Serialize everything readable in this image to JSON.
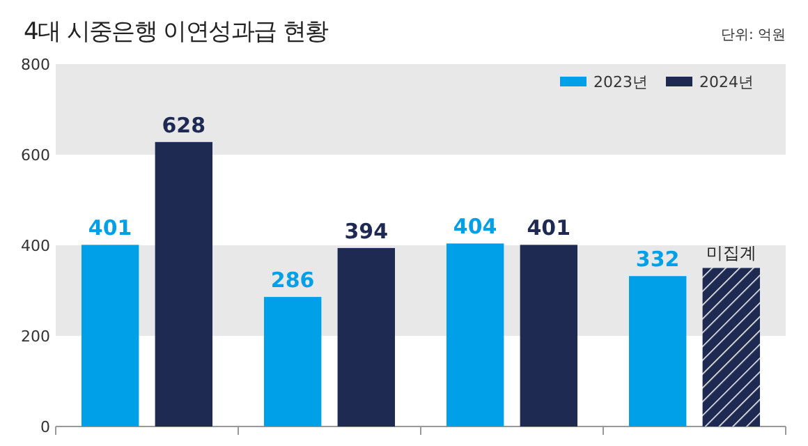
{
  "chart_data": {
    "type": "bar",
    "title": "4대 시중은행 이연성과급 현황",
    "annotations": [
      "단위: 억원"
    ],
    "categories": [
      null,
      null,
      null,
      null
    ],
    "series": [
      {
        "name": "2023년",
        "color": "#00a0e9",
        "values": [
          401,
          286,
          404,
          332
        ],
        "value_labels": [
          "401",
          "286",
          "404",
          "332"
        ]
      },
      {
        "name": "2024년",
        "color": "#1e2a52",
        "values": [
          628,
          394,
          401,
          350
        ],
        "value_labels": [
          "628",
          "394",
          "401",
          "미집계"
        ]
      }
    ],
    "ylim": [
      0,
      800
    ],
    "yticks": [
      0,
      200,
      400,
      600,
      800
    ],
    "bands": [
      {
        "axis": "y",
        "from": 200,
        "to": 400,
        "color": "#e8e8e8"
      },
      {
        "axis": "y",
        "from": 600,
        "to": 800,
        "color": "#e8e8e8"
      }
    ],
    "legend": "top right",
    "grid": false
  }
}
